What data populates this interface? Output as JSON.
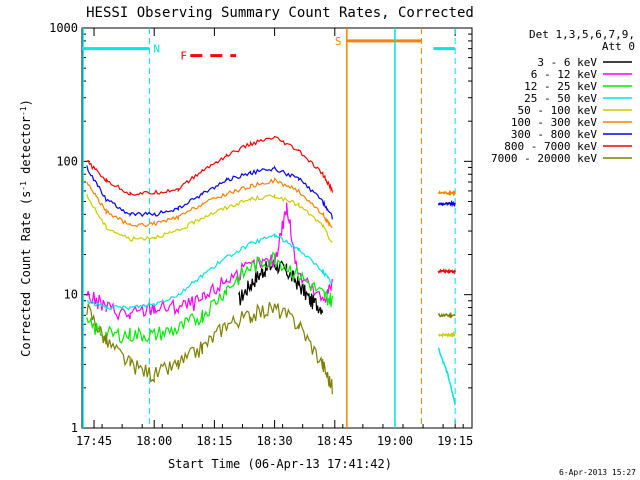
{
  "chart_data": {
    "type": "line",
    "title": "HESSI Observing Summary Count Rates, Corrected",
    "xlabel": "Start Time (06-Apr-13 17:41:42)",
    "ylabel_parts": {
      "base": "Corrected Count Rate (s",
      "sup": "-1",
      "tail": " detector",
      "sup2": "-1",
      "end": ")"
    },
    "timestamp": "6-Apr-2013 15:27",
    "y_scale": "log",
    "ylim": [
      1,
      1000
    ],
    "xlim": [
      17.7,
      19.32
    ],
    "yticks": [
      {
        "v": 1,
        "label": "1"
      },
      {
        "v": 10,
        "label": "10"
      },
      {
        "v": 100,
        "label": "100"
      },
      {
        "v": 1000,
        "label": "1000"
      }
    ],
    "xticks": [
      {
        "v": 17.75,
        "label": "17:45"
      },
      {
        "v": 18.0,
        "label": "18:00"
      },
      {
        "v": 18.25,
        "label": "18:15"
      },
      {
        "v": 18.5,
        "label": "18:30"
      },
      {
        "v": 18.75,
        "label": "18:45"
      },
      {
        "v": 19.0,
        "label": "19:00"
      },
      {
        "v": 19.25,
        "label": "19:15"
      }
    ],
    "legend": {
      "header1": "Det 1,3,5,6,7,9,",
      "header2": "Att 0"
    },
    "series": [
      {
        "name": "3 - 6 keV",
        "color": "#000000",
        "points": [
          [
            18.35,
            9
          ],
          [
            18.4,
            12
          ],
          [
            18.45,
            15
          ],
          [
            18.5,
            17
          ],
          [
            18.55,
            15
          ],
          [
            18.6,
            12
          ],
          [
            18.65,
            9
          ],
          [
            18.7,
            8
          ]
        ],
        "tail": []
      },
      {
        "name": "6 - 12 keV",
        "color": "#ff00ff",
        "points": [
          [
            17.72,
            10
          ],
          [
            17.8,
            8
          ],
          [
            17.9,
            7
          ],
          [
            18.0,
            8
          ],
          [
            18.1,
            8
          ],
          [
            18.2,
            9
          ],
          [
            18.3,
            13
          ],
          [
            18.4,
            16
          ],
          [
            18.5,
            18
          ],
          [
            18.55,
            45
          ],
          [
            18.6,
            14
          ],
          [
            18.7,
            9
          ],
          [
            18.74,
            12
          ]
        ],
        "tail": []
      },
      {
        "name": "12 - 25 keV",
        "color": "#00ee00",
        "points": [
          [
            17.72,
            6
          ],
          [
            17.8,
            5
          ],
          [
            17.9,
            5
          ],
          [
            18.0,
            5
          ],
          [
            18.1,
            5.5
          ],
          [
            18.2,
            7
          ],
          [
            18.3,
            11
          ],
          [
            18.4,
            16
          ],
          [
            18.5,
            19
          ],
          [
            18.6,
            14
          ],
          [
            18.7,
            10
          ],
          [
            18.74,
            9
          ]
        ],
        "tail": []
      },
      {
        "name": "25 - 50 keV",
        "color": "#00e5e5",
        "points": [
          [
            17.72,
            9
          ],
          [
            17.8,
            8
          ],
          [
            17.9,
            8
          ],
          [
            18.0,
            8.5
          ],
          [
            18.1,
            10
          ],
          [
            18.2,
            14
          ],
          [
            18.3,
            19
          ],
          [
            18.4,
            24
          ],
          [
            18.5,
            28
          ],
          [
            18.6,
            22
          ],
          [
            18.7,
            15
          ],
          [
            18.74,
            12
          ]
        ],
        "tail": [
          [
            19.18,
            4
          ],
          [
            19.22,
            2.5
          ],
          [
            19.25,
            1.5
          ]
        ]
      },
      {
        "name": "50 - 100 keV",
        "color": "#cccc00",
        "points": [
          [
            17.72,
            55
          ],
          [
            17.8,
            32
          ],
          [
            17.9,
            26
          ],
          [
            18.0,
            27
          ],
          [
            18.1,
            30
          ],
          [
            18.2,
            38
          ],
          [
            18.3,
            45
          ],
          [
            18.4,
            52
          ],
          [
            18.5,
            55
          ],
          [
            18.6,
            47
          ],
          [
            18.7,
            33
          ],
          [
            18.74,
            24
          ]
        ],
        "tail": [
          [
            19.18,
            5
          ],
          [
            19.22,
            5
          ],
          [
            19.25,
            5
          ]
        ]
      },
      {
        "name": "100 - 300 keV",
        "color": "#ff8000",
        "points": [
          [
            17.72,
            70
          ],
          [
            17.8,
            42
          ],
          [
            17.9,
            33
          ],
          [
            18.0,
            34
          ],
          [
            18.1,
            38
          ],
          [
            18.2,
            48
          ],
          [
            18.3,
            57
          ],
          [
            18.4,
            65
          ],
          [
            18.5,
            72
          ],
          [
            18.6,
            60
          ],
          [
            18.7,
            40
          ],
          [
            18.74,
            31
          ]
        ],
        "tail": [
          [
            19.18,
            58
          ],
          [
            19.22,
            58
          ],
          [
            19.25,
            58
          ]
        ]
      },
      {
        "name": "300 - 800 keV",
        "color": "#0000ff",
        "points": [
          [
            17.72,
            90
          ],
          [
            17.8,
            52
          ],
          [
            17.9,
            40
          ],
          [
            18.0,
            40
          ],
          [
            18.1,
            44
          ],
          [
            18.2,
            57
          ],
          [
            18.3,
            72
          ],
          [
            18.4,
            82
          ],
          [
            18.5,
            88
          ],
          [
            18.6,
            74
          ],
          [
            18.7,
            50
          ],
          [
            18.74,
            38
          ]
        ],
        "tail": [
          [
            19.18,
            48
          ],
          [
            19.22,
            48
          ],
          [
            19.25,
            48
          ]
        ]
      },
      {
        "name": "800 - 7000 keV",
        "color": "#ff0000",
        "points": [
          [
            17.72,
            100
          ],
          [
            17.8,
            72
          ],
          [
            17.9,
            57
          ],
          [
            18.0,
            58
          ],
          [
            18.1,
            62
          ],
          [
            18.2,
            85
          ],
          [
            18.3,
            110
          ],
          [
            18.4,
            135
          ],
          [
            18.5,
            150
          ],
          [
            18.6,
            120
          ],
          [
            18.7,
            80
          ],
          [
            18.74,
            60
          ]
        ],
        "tail": [
          [
            19.18,
            15
          ],
          [
            19.22,
            15
          ],
          [
            19.25,
            15
          ]
        ]
      },
      {
        "name": "7000 - 20000 keV",
        "color": "#808000",
        "points": [
          [
            17.72,
            8
          ],
          [
            17.8,
            4.5
          ],
          [
            17.9,
            3
          ],
          [
            18.0,
            2.5
          ],
          [
            18.1,
            3
          ],
          [
            18.2,
            4
          ],
          [
            18.3,
            6
          ],
          [
            18.4,
            7
          ],
          [
            18.5,
            8
          ],
          [
            18.6,
            6
          ],
          [
            18.7,
            3
          ],
          [
            18.74,
            2
          ]
        ],
        "tail": [
          [
            19.18,
            7
          ],
          [
            19.22,
            7
          ],
          [
            19.25,
            7
          ]
        ]
      }
    ],
    "flags": [
      {
        "label": "N",
        "color": "#00e5e5",
        "y": 700,
        "x_start": 17.7,
        "x_end": 17.98,
        "x_dash": 17.98
      },
      {
        "label": "S",
        "color": "#ff8000",
        "y": 800,
        "x_start": 18.8,
        "x_end": 19.11,
        "x_dash": 19.11
      },
      {
        "label": "F",
        "color": "#ff0000",
        "y": 620,
        "x_start": 18.15,
        "x_end": 18.34,
        "x_dash": null
      }
    ],
    "extra_flag_segment": {
      "color": "#00e5e5",
      "y": 700,
      "x_start": 19.16,
      "x_end": 19.25,
      "x_dash": 19.25
    },
    "gap_bounds": {
      "orange_left": 18.8,
      "cyan_left": 19.0,
      "cyan_right": 19.25
    }
  }
}
